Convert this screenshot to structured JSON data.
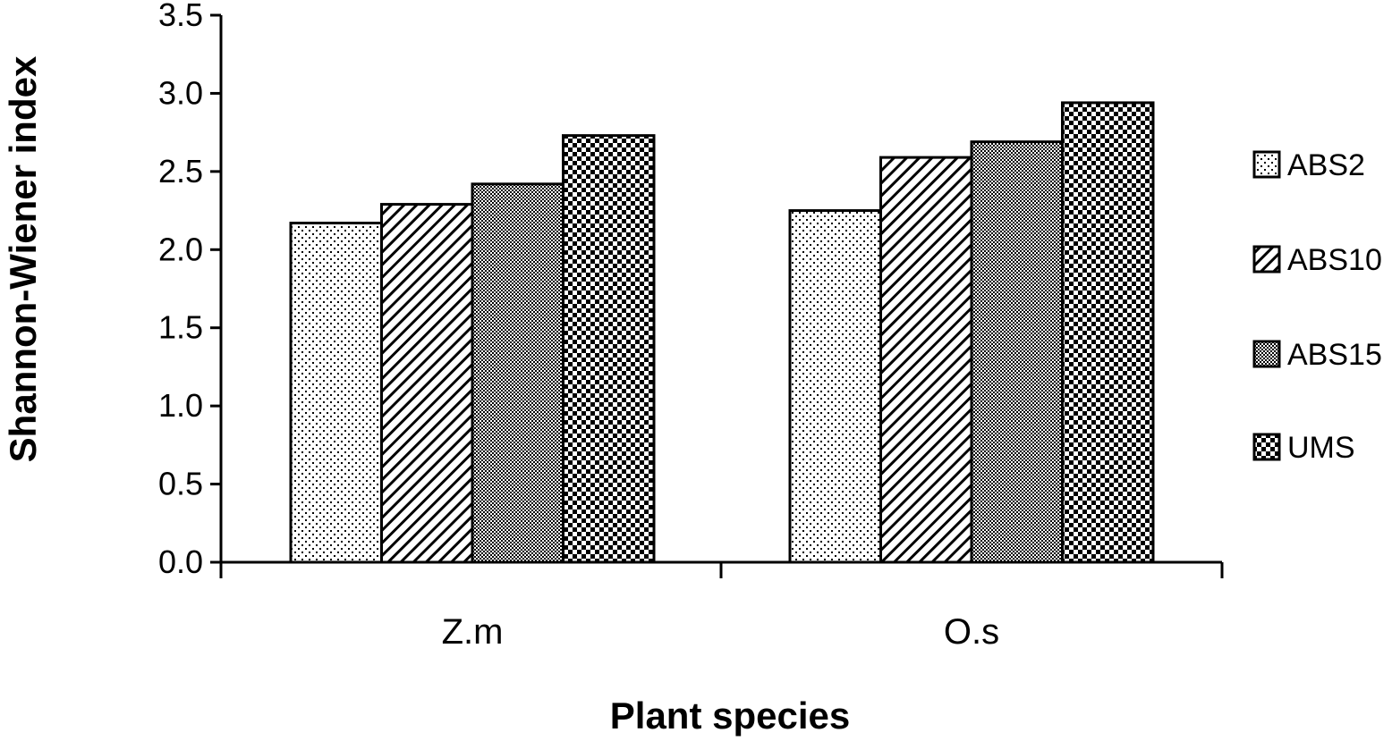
{
  "chart_data": {
    "type": "bar",
    "categories": [
      "Z.m",
      "O.s"
    ],
    "series": [
      {
        "name": "ABS2",
        "values": [
          2.17,
          2.25
        ],
        "pattern": "dots"
      },
      {
        "name": "ABS10",
        "values": [
          2.29,
          2.59
        ],
        "pattern": "diagonal"
      },
      {
        "name": "ABS15",
        "values": [
          2.42,
          2.69
        ],
        "pattern": "fine-checker"
      },
      {
        "name": "UMS",
        "values": [
          2.73,
          2.94
        ],
        "pattern": "checker"
      }
    ],
    "xlabel": "Plant species",
    "ylabel": "Shannon-Wiener index",
    "ylim": [
      0,
      3.5
    ],
    "yticks": [
      "0.0",
      "0.5",
      "1.0",
      "1.5",
      "2.0",
      "2.5",
      "3.0",
      "3.5"
    ],
    "legend_position": "right",
    "grid": false,
    "colors": {
      "bar_stroke": "#000000",
      "background": "#ffffff"
    }
  }
}
